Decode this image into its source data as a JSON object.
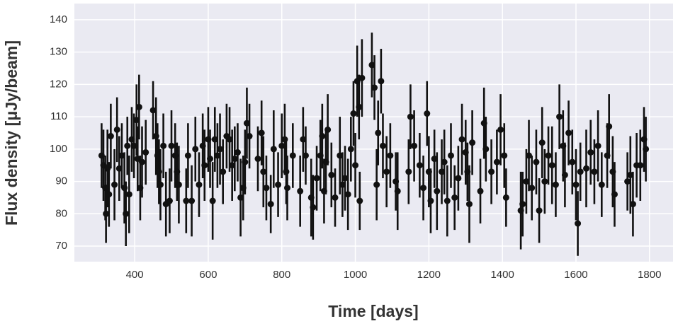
{
  "chart_data": {
    "type": "errorbar",
    "x_label": "Time [days]",
    "y_label": "Flux density [μJy/beam]",
    "color": "#111111",
    "grid": true,
    "xlim": [
      236,
      1864
    ],
    "ylim": [
      65.2,
      145
    ],
    "xticks": [
      400,
      600,
      800,
      1000,
      1200,
      1400,
      1600,
      1800
    ],
    "yticks": [
      70,
      80,
      90,
      100,
      110,
      120,
      130,
      140
    ],
    "x": [
      310,
      315,
      320,
      322,
      326,
      330,
      335,
      345,
      352,
      358,
      365,
      372,
      376,
      380,
      385,
      392,
      398,
      405,
      408,
      412,
      415,
      420,
      430,
      450,
      458,
      462,
      466,
      470,
      478,
      485,
      495,
      500,
      510,
      515,
      520,
      540,
      545,
      555,
      565,
      575,
      585,
      590,
      600,
      605,
      612,
      618,
      625,
      632,
      640,
      650,
      658,
      665,
      672,
      680,
      688,
      695,
      700,
      705,
      712,
      735,
      745,
      750,
      758,
      770,
      778,
      790,
      800,
      808,
      812,
      815,
      830,
      850,
      858,
      865,
      880,
      885,
      895,
      905,
      910,
      915,
      920,
      925,
      935,
      945,
      958,
      965,
      972,
      980,
      988,
      995,
      1000,
      1005,
      1010,
      1012,
      1018,
      1045,
      1052,
      1058,
      1062,
      1070,
      1075,
      1085,
      1095,
      1110,
      1115,
      1145,
      1150,
      1160,
      1175,
      1185,
      1195,
      1200,
      1205,
      1215,
      1222,
      1235,
      1242,
      1250,
      1260,
      1270,
      1280,
      1290,
      1300,
      1305,
      1310,
      1318,
      1340,
      1350,
      1355,
      1370,
      1385,
      1395,
      1405,
      1410,
      1450,
      1455,
      1465,
      1472,
      1480,
      1492,
      1500,
      1508,
      1515,
      1525,
      1535,
      1545,
      1555,
      1565,
      1570,
      1580,
      1590,
      1600,
      1605,
      1612,
      1628,
      1640,
      1650,
      1660,
      1670,
      1685,
      1690,
      1700,
      1705,
      1740,
      1748,
      1755,
      1765,
      1775,
      1785,
      1790
    ],
    "values": [
      98,
      95,
      88,
      80,
      94,
      86,
      104,
      89,
      106,
      94,
      98,
      88,
      80,
      101,
      86,
      103,
      101,
      109,
      97,
      113,
      88,
      96,
      99,
      112,
      104,
      98,
      93,
      89,
      101,
      83,
      84,
      101,
      98,
      93,
      89,
      84,
      98,
      84,
      100,
      89,
      101,
      95,
      103,
      97,
      84,
      103,
      98,
      100,
      93,
      104,
      103,
      95,
      97,
      99,
      85,
      88,
      96,
      108,
      104,
      97,
      105,
      93,
      88,
      83,
      100,
      89,
      101,
      103,
      93,
      88,
      98,
      87,
      103,
      98,
      85,
      82,
      91,
      98,
      104,
      87,
      96,
      106,
      92,
      85,
      98,
      89,
      91,
      86,
      100,
      111,
      95,
      121,
      113,
      84,
      122,
      126,
      119,
      89,
      105,
      121,
      101,
      93,
      98,
      90,
      87,
      93,
      110,
      101,
      95,
      88,
      111,
      93,
      84,
      97,
      87,
      93,
      96,
      84,
      98,
      85,
      91,
      103,
      99,
      93,
      83,
      102,
      87,
      108,
      100,
      93,
      96,
      106,
      98,
      85,
      81,
      83,
      90,
      98,
      88,
      96,
      81,
      102,
      90,
      98,
      95,
      89,
      110,
      101,
      92,
      105,
      96,
      89,
      77,
      93,
      94,
      99,
      93,
      101,
      89,
      98,
      107,
      93,
      86,
      90,
      92,
      83,
      95,
      95,
      103,
      100
    ],
    "errors": [
      10,
      11,
      10,
      9,
      12,
      10,
      10,
      11,
      10,
      10,
      10,
      11,
      10,
      9,
      12,
      10,
      10,
      11,
      10,
      10,
      10,
      11,
      10,
      9,
      12,
      10,
      10,
      11,
      10,
      10,
      10,
      11,
      10,
      9,
      12,
      10,
      10,
      11,
      10,
      10,
      10,
      11,
      10,
      9,
      12,
      10,
      10,
      11,
      10,
      10,
      10,
      11,
      10,
      9,
      12,
      10,
      10,
      11,
      10,
      10,
      10,
      11,
      10,
      9,
      12,
      10,
      10,
      11,
      10,
      10,
      10,
      11,
      10,
      9,
      12,
      10,
      10,
      11,
      10,
      10,
      10,
      11,
      10,
      9,
      12,
      10,
      10,
      11,
      10,
      10,
      10,
      11,
      10,
      9,
      12,
      10,
      10,
      11,
      10,
      10,
      10,
      11,
      10,
      9,
      12,
      10,
      10,
      11,
      10,
      10,
      10,
      11,
      10,
      9,
      12,
      10,
      10,
      11,
      10,
      10,
      10,
      11,
      10,
      9,
      12,
      10,
      10,
      11,
      10,
      10,
      10,
      11,
      10,
      9,
      12,
      10,
      10,
      11,
      10,
      10,
      10,
      11,
      10,
      9,
      12,
      10,
      10,
      11,
      10,
      10,
      10,
      11,
      10,
      9,
      12,
      10,
      10,
      11,
      10,
      10,
      10,
      11,
      10,
      9,
      12,
      10,
      10,
      11,
      10,
      10
    ]
  }
}
